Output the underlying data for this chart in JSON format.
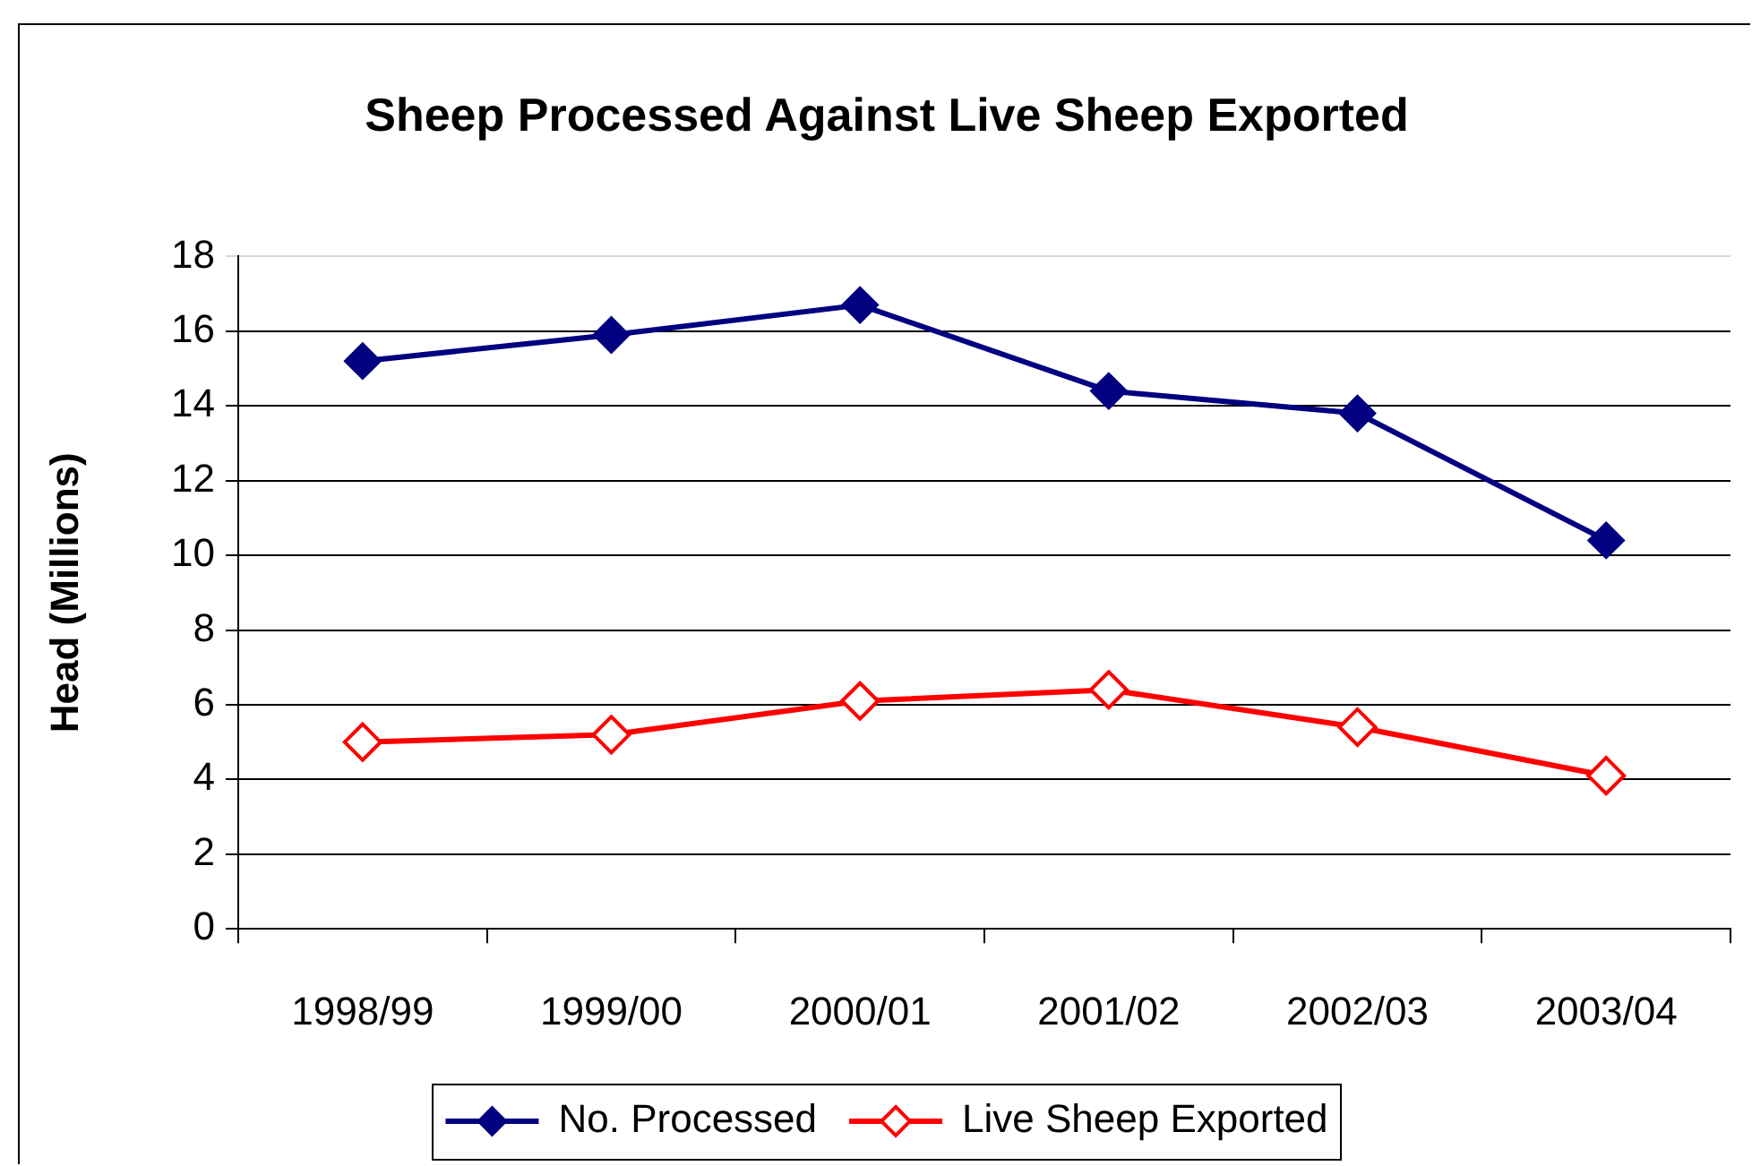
{
  "chart_data": {
    "type": "line",
    "title": "Sheep Processed Against Live Sheep Exported",
    "ylabel": "Head (Millions)",
    "categories": [
      "1998/99",
      "1999/00",
      "2000/01",
      "2001/02",
      "2002/03",
      "2003/04"
    ],
    "series": [
      {
        "name": "No. Processed",
        "color": "#000080",
        "values": [
          15.2,
          15.9,
          16.7,
          14.4,
          13.8,
          10.4
        ]
      },
      {
        "name": "Live Sheep Exported",
        "color": "#ff0000",
        "values": [
          5.0,
          5.2,
          6.1,
          6.4,
          5.4,
          4.1
        ]
      }
    ],
    "ylim": [
      0,
      18
    ],
    "yticks": [
      0,
      2,
      4,
      6,
      8,
      10,
      12,
      14,
      16,
      18
    ],
    "grid": "y",
    "legend": "bottom",
    "marker": "diamond",
    "line_style": "solid"
  }
}
